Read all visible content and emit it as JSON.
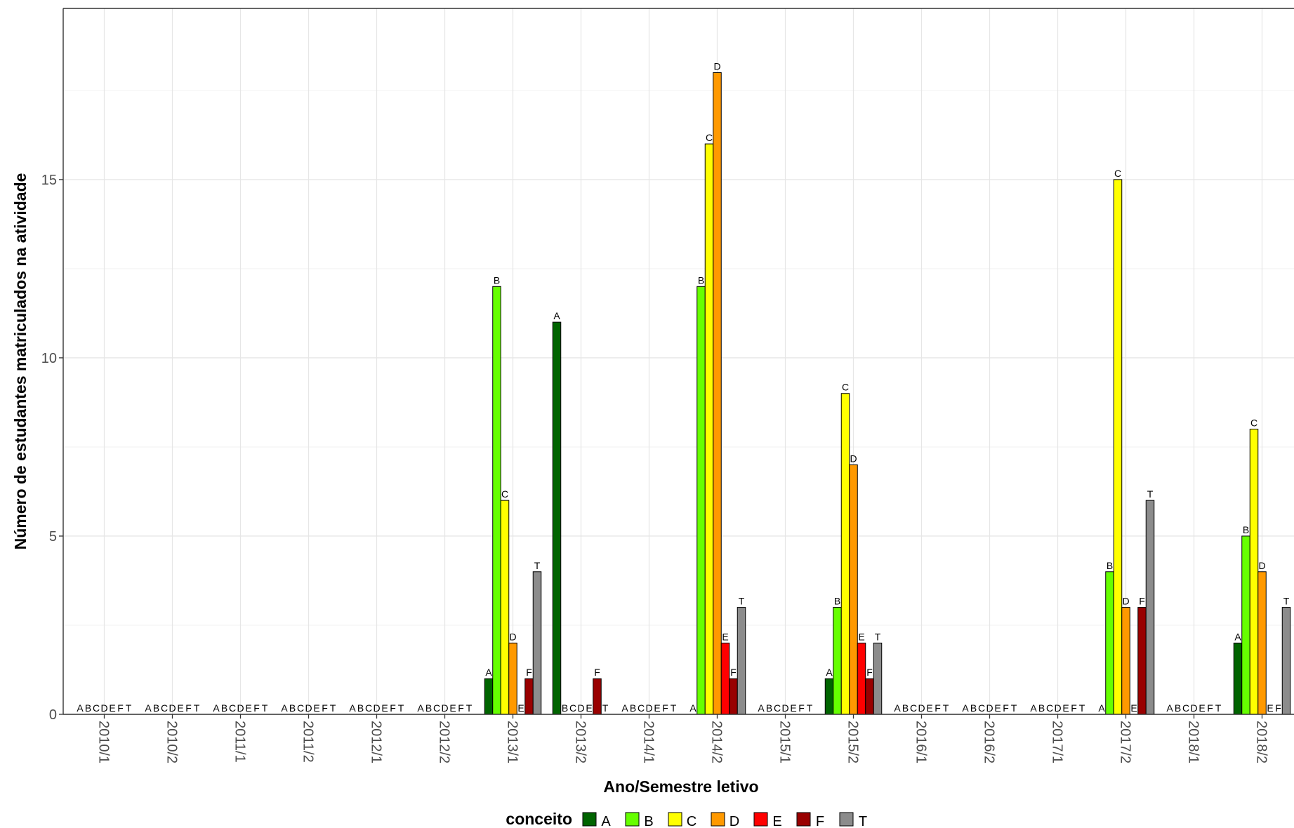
{
  "chart_data": {
    "type": "bar",
    "xlabel": "Ano/Semestre letivo",
    "ylabel": "Número de estudantes matriculados na atividade",
    "ylim": [
      0,
      19.8
    ],
    "yticks": [
      0,
      5,
      10,
      15
    ],
    "grid": true,
    "legend_position": "bottom",
    "legend_title": "conceito",
    "categories": [
      "2010/1",
      "2010/2",
      "2011/1",
      "2011/2",
      "2012/1",
      "2012/2",
      "2013/1",
      "2013/2",
      "2014/1",
      "2014/2",
      "2015/1",
      "2015/2",
      "2016/1",
      "2016/2",
      "2017/1",
      "2017/2",
      "2018/1",
      "2018/2"
    ],
    "series": [
      {
        "name": "A",
        "color": "#006400",
        "values": [
          0,
          0,
          0,
          0,
          0,
          0,
          1,
          11,
          0,
          0,
          0,
          1,
          0,
          0,
          0,
          0,
          0,
          2
        ]
      },
      {
        "name": "B",
        "color": "#66FF00",
        "values": [
          0,
          0,
          0,
          0,
          0,
          0,
          12,
          0,
          0,
          12,
          0,
          3,
          0,
          0,
          0,
          4,
          0,
          5
        ]
      },
      {
        "name": "C",
        "color": "#FFFF00",
        "values": [
          0,
          0,
          0,
          0,
          0,
          0,
          6,
          0,
          0,
          16,
          0,
          9,
          0,
          0,
          0,
          15,
          0,
          8
        ]
      },
      {
        "name": "D",
        "color": "#FF9900",
        "values": [
          0,
          0,
          0,
          0,
          0,
          0,
          2,
          0,
          0,
          18,
          0,
          7,
          0,
          0,
          0,
          3,
          0,
          4
        ]
      },
      {
        "name": "E",
        "color": "#FF0000",
        "values": [
          0,
          0,
          0,
          0,
          0,
          0,
          0,
          0,
          0,
          2,
          0,
          2,
          0,
          0,
          0,
          0,
          0,
          0
        ]
      },
      {
        "name": "F",
        "color": "#990000",
        "values": [
          0,
          0,
          0,
          0,
          0,
          0,
          1,
          1,
          0,
          1,
          0,
          1,
          0,
          0,
          0,
          3,
          0,
          0
        ]
      },
      {
        "name": "T",
        "color": "#8C8C8C",
        "values": [
          0,
          0,
          0,
          0,
          0,
          0,
          4,
          0,
          0,
          3,
          0,
          2,
          0,
          0,
          0,
          6,
          0,
          3
        ]
      }
    ]
  }
}
